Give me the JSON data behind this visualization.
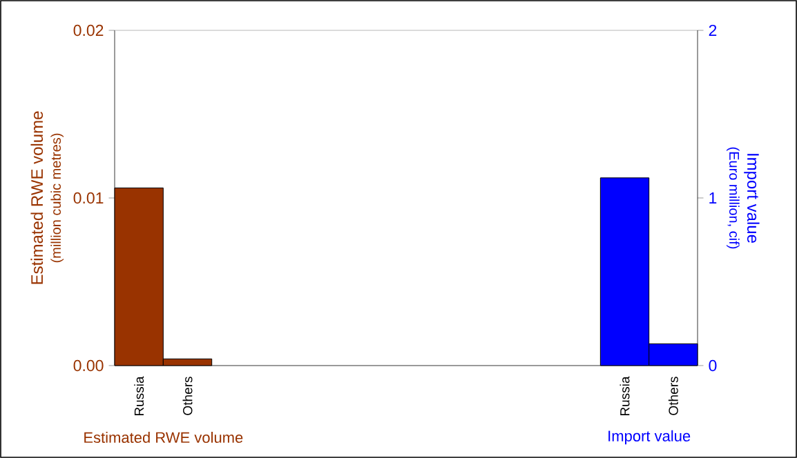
{
  "chart_data": {
    "type": "bar",
    "categories": [
      "Russia",
      "Others",
      null,
      null,
      null,
      null,
      null,
      null,
      null,
      null,
      "Russia",
      "Others"
    ],
    "series": [
      {
        "name": "Estimated RWE volume",
        "color": "#993300",
        "values": [
          0.0106,
          0.0004,
          null,
          null,
          null,
          null,
          null,
          null,
          null,
          null,
          null,
          null
        ]
      },
      {
        "name": "Import value",
        "color": "#0000ff",
        "axis": "y2",
        "values": [
          null,
          null,
          null,
          null,
          null,
          null,
          null,
          null,
          null,
          null,
          1.12,
          0.13
        ]
      }
    ],
    "ylabel": "Estimated RWE volume",
    "y2label": "Import value",
    "annotations": [
      "(million cubic metres)",
      "(Euro million, cif)"
    ],
    "ylim": [
      0,
      0.02
    ],
    "yticks": [
      {
        "value": 0,
        "label": "0.00"
      },
      {
        "value": 0.01,
        "label": "0.01"
      },
      {
        "value": 0.02,
        "label": "0.02"
      }
    ],
    "y2lim": [
      0,
      2
    ],
    "y2ticks": [
      0,
      1,
      2
    ]
  }
}
